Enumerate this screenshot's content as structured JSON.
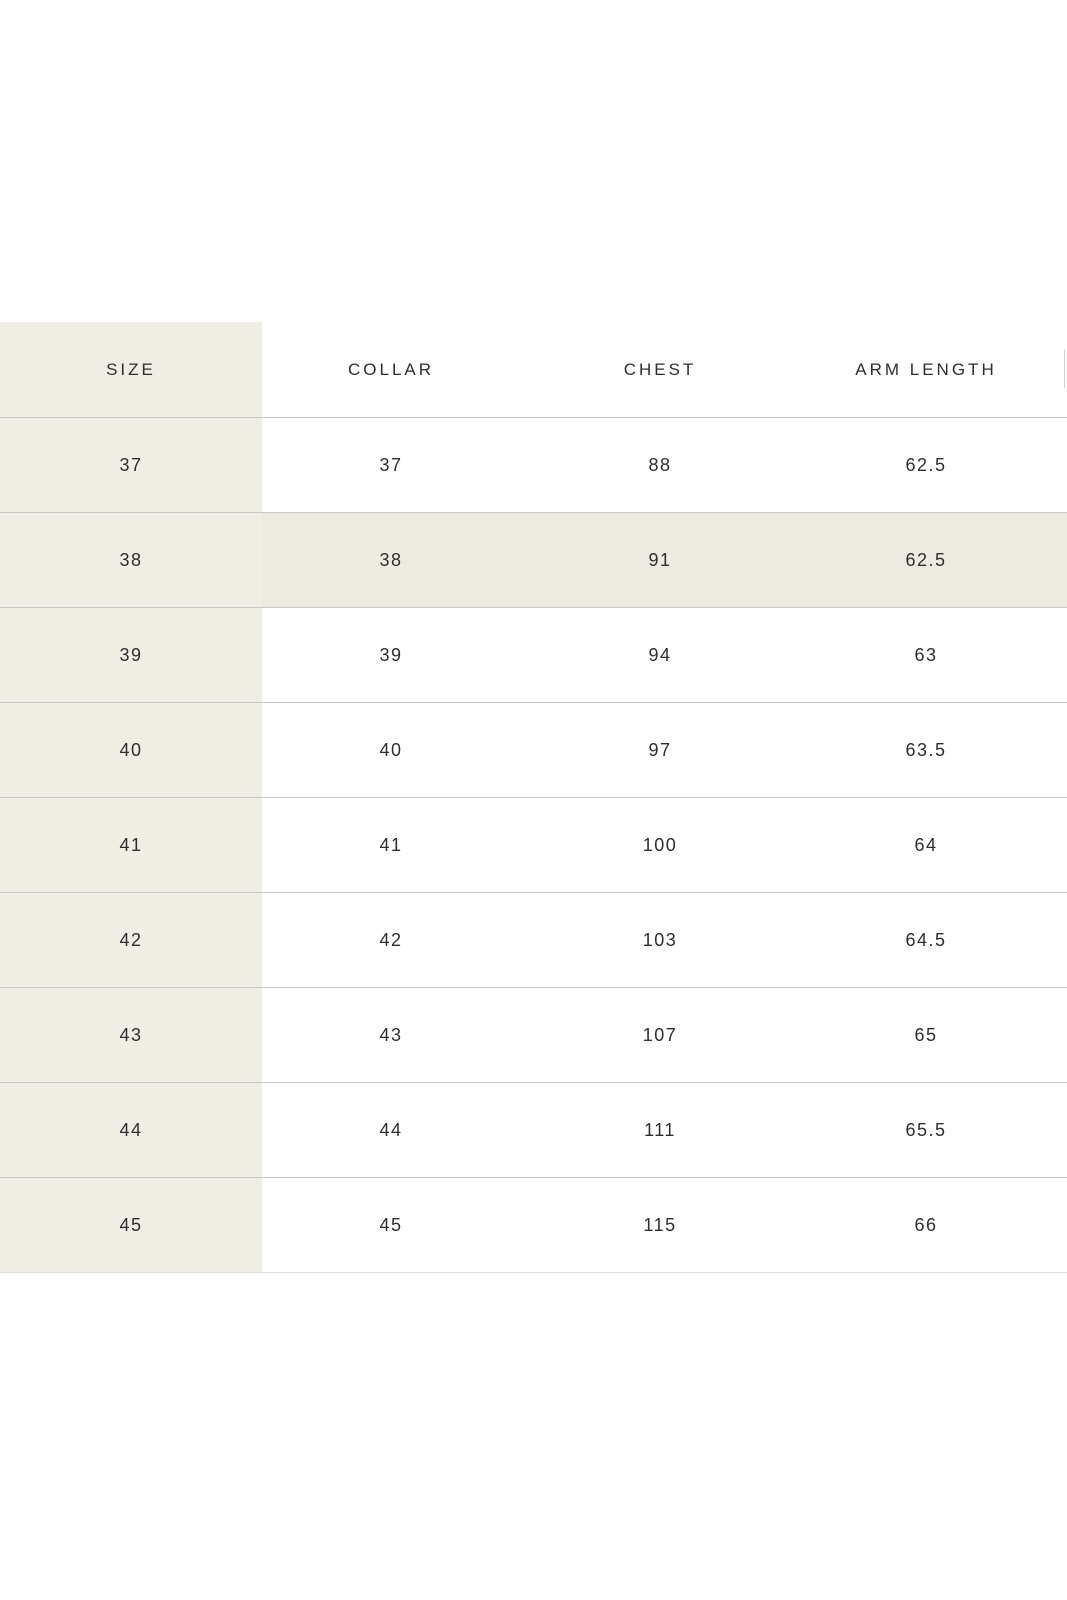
{
  "page": {
    "background": "#ffffff"
  },
  "size_table": {
    "header": {
      "size": "SIZE",
      "collar": "COLLAR",
      "chest": "CHEST",
      "arm_length": "ARM LENGTH"
    },
    "rows": [
      {
        "size": "37",
        "collar": "37",
        "chest": "88",
        "arm_length": "62.5",
        "highlighted": false
      },
      {
        "size": "38",
        "collar": "38",
        "chest": "91",
        "arm_length": "62.5",
        "highlighted": true
      },
      {
        "size": "39",
        "collar": "39",
        "chest": "94",
        "arm_length": "63",
        "highlighted": false
      },
      {
        "size": "40",
        "collar": "40",
        "chest": "97",
        "arm_length": "63.5",
        "highlighted": false
      },
      {
        "size": "41",
        "collar": "41",
        "chest": "100",
        "arm_length": "64",
        "highlighted": false
      },
      {
        "size": "42",
        "collar": "42",
        "chest": "103",
        "arm_length": "64.5",
        "highlighted": false
      },
      {
        "size": "43",
        "collar": "43",
        "chest": "107",
        "arm_length": "65",
        "highlighted": false
      },
      {
        "size": "44",
        "collar": "44",
        "chest": "111",
        "arm_length": "65.5",
        "highlighted": false
      },
      {
        "size": "45",
        "collar": "45",
        "chest": "115",
        "arm_length": "66",
        "highlighted": false
      }
    ],
    "selected_size": "38",
    "colors": {
      "size_column_bg": "#f0ede4",
      "highlighted_row_bg": "#edeae1",
      "row_border": "#c9c7c3",
      "header_text": "#2e2e2e",
      "cell_text": "#2e2e2e",
      "page_bg": "#ffffff"
    }
  },
  "chart_data": {
    "type": "table",
    "columns": [
      "SIZE",
      "COLLAR",
      "CHEST",
      "ARM LENGTH"
    ],
    "rows": [
      [
        37,
        37,
        88,
        62.5
      ],
      [
        38,
        38,
        91,
        62.5
      ],
      [
        39,
        39,
        94,
        63
      ],
      [
        40,
        40,
        97,
        63.5
      ],
      [
        41,
        41,
        100,
        64
      ],
      [
        42,
        42,
        103,
        64.5
      ],
      [
        43,
        43,
        107,
        65
      ],
      [
        44,
        44,
        111,
        65.5
      ],
      [
        45,
        45,
        115,
        66
      ]
    ],
    "highlighted_row": "38"
  }
}
